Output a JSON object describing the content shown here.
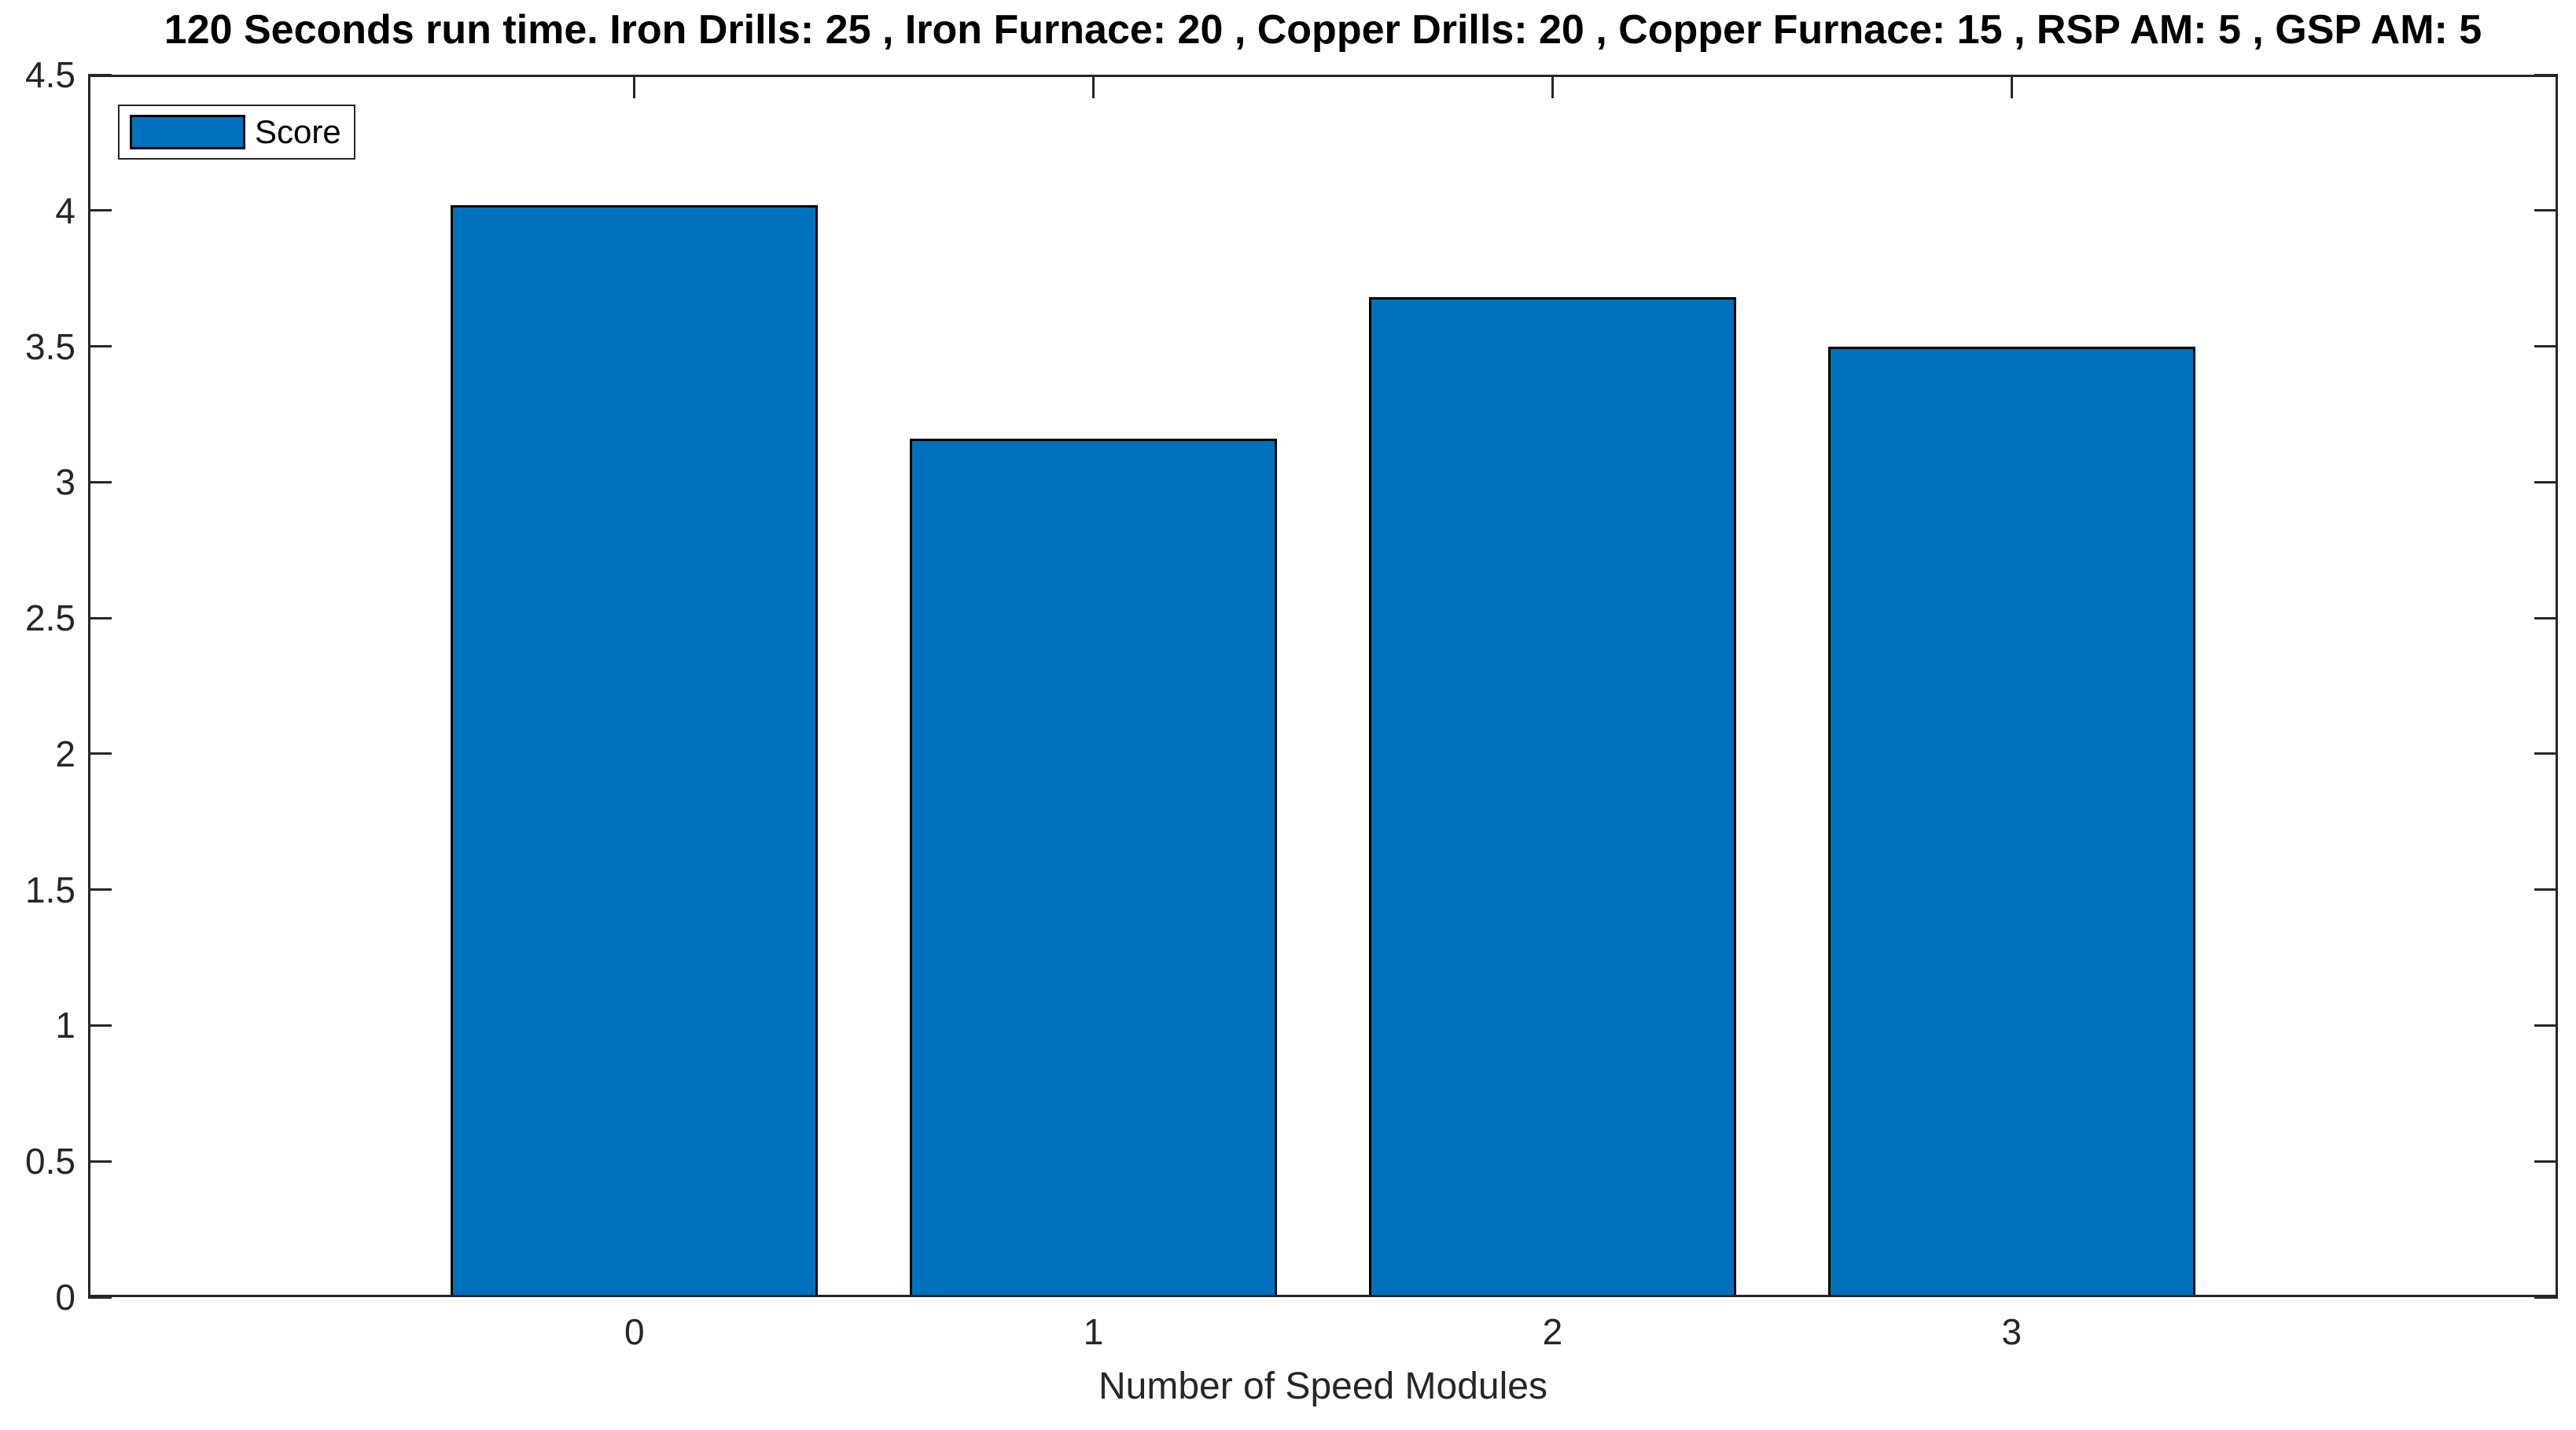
{
  "chart_data": {
    "type": "bar",
    "title": "120 Seconds run time. Iron Drills: 25 , Iron Furnace: 20 , Copper Drills: 20 , Copper Furnace: 15 , RSP AM: 5 , GSP AM: 5",
    "xlabel": "Number of Speed Modules",
    "ylabel": "",
    "categories": [
      "0",
      "1",
      "2",
      "3"
    ],
    "x_values": [
      0,
      1,
      2,
      3
    ],
    "series": [
      {
        "name": "Score",
        "values": [
          4.02,
          3.16,
          3.68,
          3.5
        ]
      }
    ],
    "bar_width": 0.8,
    "xlim": [
      -1.19,
      4.19
    ],
    "ylim": [
      0,
      4.5
    ],
    "yticks": [
      0,
      0.5,
      1,
      1.5,
      2,
      2.5,
      3,
      3.5,
      4,
      4.5
    ],
    "ytick_labels": [
      "0",
      "0.5",
      "1",
      "1.5",
      "2",
      "2.5",
      "3",
      "3.5",
      "4",
      "4.5"
    ],
    "grid": false,
    "legend": {
      "position": "top-left",
      "entries": [
        "Score"
      ]
    },
    "colors": {
      "bar_fill": "#0072BD",
      "bar_edge": "#000000",
      "axis": "#262626",
      "tick_text": "#262626",
      "title_text": "#000000",
      "background": "#FFFFFF"
    }
  }
}
